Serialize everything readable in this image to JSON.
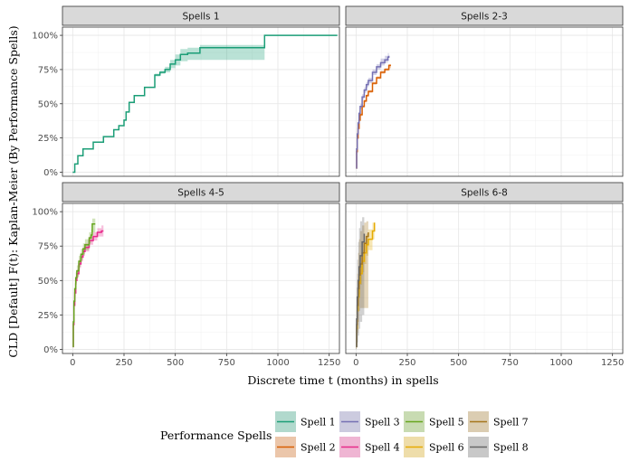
{
  "chart_data": {
    "type": "line",
    "ylabel": "CLD [Default] F(t): Kaplan-Meier (By Performance Spells)",
    "xlabel": "Discrete time t (months) in spells",
    "x_ticks": [
      0,
      250,
      500,
      750,
      1000,
      1250
    ],
    "y_ticks": [
      "0%",
      "25%",
      "50%",
      "75%",
      "100%"
    ],
    "xlim": [
      -50,
      1300
    ],
    "ylim": [
      -0.03,
      1.06
    ],
    "grid": true,
    "legend": {
      "title": "Performance Spells",
      "position": "bottom",
      "items": [
        {
          "name": "Spell 1",
          "color": "#1B9E77"
        },
        {
          "name": "Spell 2",
          "color": "#D95F02"
        },
        {
          "name": "Spell 3",
          "color": "#7570B3"
        },
        {
          "name": "Spell 4",
          "color": "#E7298A"
        },
        {
          "name": "Spell 5",
          "color": "#66A61E"
        },
        {
          "name": "Spell 6",
          "color": "#E6AB02"
        },
        {
          "name": "Spell 7",
          "color": "#A6761D"
        },
        {
          "name": "Spell 8",
          "color": "#666666"
        }
      ]
    },
    "panels": [
      {
        "title": "Spells 1",
        "series": [
          {
            "name": "Spell 1",
            "color": "#1B9E77",
            "x": [
              0,
              10,
              25,
              50,
              100,
              150,
              200,
              225,
              250,
              260,
              275,
              300,
              350,
              400,
              425,
              450,
              475,
              500,
              525,
              560,
              620,
              700,
              800,
              930,
              935,
              1000,
              1150,
              1290
            ],
            "y": [
              0,
              0.06,
              0.12,
              0.17,
              0.22,
              0.26,
              0.31,
              0.34,
              0.38,
              0.44,
              0.51,
              0.56,
              0.62,
              0.71,
              0.73,
              0.75,
              0.79,
              0.82,
              0.86,
              0.87,
              0.91,
              0.91,
              0.91,
              0.91,
              1.0,
              1.0,
              1.0,
              1.0
            ],
            "lower": [
              0,
              0.06,
              0.12,
              0.17,
              0.22,
              0.26,
              0.31,
              0.34,
              0.38,
              0.44,
              0.51,
              0.56,
              0.62,
              0.7,
              0.72,
              0.73,
              0.76,
              0.78,
              0.81,
              0.82,
              0.82,
              0.82,
              0.82,
              0.82,
              1.0,
              1.0,
              1.0,
              1.0
            ],
            "upper": [
              0,
              0.06,
              0.12,
              0.17,
              0.22,
              0.26,
              0.31,
              0.34,
              0.38,
              0.44,
              0.51,
              0.56,
              0.62,
              0.72,
              0.74,
              0.77,
              0.82,
              0.86,
              0.9,
              0.91,
              0.93,
              0.93,
              0.93,
              0.93,
              1.0,
              1.0,
              1.0,
              1.0
            ]
          }
        ]
      },
      {
        "title": "Spells 2-3",
        "series": [
          {
            "name": "Spell 2",
            "color": "#D95F02",
            "x": [
              0,
              3,
              6,
              10,
              15,
              20,
              30,
              40,
              50,
              60,
              80,
              100,
              120,
              140,
              160,
              170
            ],
            "y": [
              0.03,
              0.15,
              0.25,
              0.32,
              0.38,
              0.42,
              0.48,
              0.52,
              0.56,
              0.59,
              0.65,
              0.69,
              0.73,
              0.75,
              0.78,
              0.78
            ],
            "lower": [
              0.03,
              0.14,
              0.24,
              0.31,
              0.37,
              0.41,
              0.47,
              0.51,
              0.55,
              0.58,
              0.64,
              0.68,
              0.72,
              0.74,
              0.76,
              0.76
            ],
            "upper": [
              0.03,
              0.16,
              0.26,
              0.33,
              0.39,
              0.43,
              0.49,
              0.53,
              0.57,
              0.6,
              0.66,
              0.7,
              0.74,
              0.76,
              0.79,
              0.79
            ]
          },
          {
            "name": "Spell 3",
            "color": "#7570B3",
            "x": [
              0,
              3,
              6,
              10,
              15,
              20,
              30,
              40,
              50,
              60,
              80,
              100,
              120,
              140,
              155,
              160
            ],
            "y": [
              0.03,
              0.17,
              0.28,
              0.36,
              0.43,
              0.48,
              0.55,
              0.6,
              0.64,
              0.67,
              0.73,
              0.77,
              0.8,
              0.82,
              0.84,
              0.85
            ],
            "lower": [
              0.03,
              0.15,
              0.26,
              0.34,
              0.41,
              0.46,
              0.53,
              0.58,
              0.62,
              0.65,
              0.71,
              0.75,
              0.78,
              0.8,
              0.81,
              0.82
            ],
            "upper": [
              0.03,
              0.19,
              0.3,
              0.38,
              0.45,
              0.5,
              0.57,
              0.62,
              0.66,
              0.69,
              0.75,
              0.79,
              0.83,
              0.85,
              0.87,
              0.88
            ]
          }
        ]
      },
      {
        "title": "Spells 4-5",
        "series": [
          {
            "name": "Spell 4",
            "color": "#E7298A",
            "x": [
              0,
              3,
              6,
              10,
              15,
              20,
              30,
              40,
              50,
              60,
              80,
              100,
              120,
              140,
              150
            ],
            "y": [
              0.02,
              0.18,
              0.32,
              0.41,
              0.5,
              0.55,
              0.62,
              0.67,
              0.71,
              0.74,
              0.79,
              0.82,
              0.85,
              0.86,
              0.86
            ],
            "lower": [
              0.02,
              0.15,
              0.29,
              0.38,
              0.47,
              0.52,
              0.59,
              0.64,
              0.68,
              0.71,
              0.76,
              0.79,
              0.82,
              0.82,
              0.82
            ],
            "upper": [
              0.02,
              0.21,
              0.35,
              0.44,
              0.53,
              0.58,
              0.65,
              0.7,
              0.74,
              0.77,
              0.82,
              0.85,
              0.88,
              0.9,
              0.9
            ]
          },
          {
            "name": "Spell 5",
            "color": "#66A61E",
            "x": [
              0,
              3,
              6,
              10,
              15,
              20,
              30,
              40,
              50,
              60,
              80,
              90,
              95,
              110
            ],
            "y": [
              0.02,
              0.2,
              0.35,
              0.44,
              0.52,
              0.57,
              0.64,
              0.69,
              0.73,
              0.76,
              0.81,
              0.83,
              0.91,
              0.91
            ],
            "lower": [
              0.02,
              0.16,
              0.31,
              0.4,
              0.48,
              0.53,
              0.6,
              0.65,
              0.69,
              0.72,
              0.77,
              0.79,
              0.85,
              0.85
            ],
            "upper": [
              0.02,
              0.24,
              0.39,
              0.48,
              0.56,
              0.61,
              0.68,
              0.73,
              0.77,
              0.8,
              0.85,
              0.87,
              0.95,
              0.95
            ]
          }
        ]
      },
      {
        "title": "Spells 6-8",
        "series": [
          {
            "name": "Spell 6",
            "color": "#E6AB02",
            "x": [
              0,
              3,
              6,
              10,
              15,
              20,
              30,
              40,
              50,
              60,
              80,
              90
            ],
            "y": [
              0.02,
              0.15,
              0.28,
              0.38,
              0.48,
              0.55,
              0.64,
              0.7,
              0.76,
              0.8,
              0.86,
              0.92
            ],
            "lower": [
              0.02,
              0.1,
              0.22,
              0.31,
              0.4,
              0.47,
              0.56,
              0.62,
              0.68,
              0.72,
              0.8,
              0.86
            ],
            "upper": [
              0.02,
              0.2,
              0.34,
              0.45,
              0.56,
              0.63,
              0.72,
              0.78,
              0.84,
              0.87,
              0.92,
              0.95
            ]
          },
          {
            "name": "Spell 7",
            "color": "#A6761D",
            "x": [
              0,
              3,
              6,
              10,
              15,
              20,
              30,
              40,
              50,
              60
            ],
            "y": [
              0.02,
              0.18,
              0.32,
              0.44,
              0.54,
              0.62,
              0.7,
              0.77,
              0.82,
              0.85
            ],
            "lower": [
              0.0,
              0.05,
              0.12,
              0.2,
              0.28,
              0.3,
              0.3,
              0.3,
              0.3,
              0.3
            ],
            "upper": [
              0.05,
              0.35,
              0.55,
              0.7,
              0.8,
              0.86,
              0.9,
              0.92,
              0.93,
              0.93
            ]
          },
          {
            "name": "Spell 8",
            "color": "#666666",
            "x": [
              0,
              3,
              6,
              10,
              15,
              20,
              30,
              40
            ],
            "y": [
              0.02,
              0.22,
              0.38,
              0.5,
              0.6,
              0.68,
              0.78,
              0.84
            ],
            "lower": [
              0.0,
              0.02,
              0.05,
              0.1,
              0.15,
              0.2,
              0.25,
              0.28
            ],
            "upper": [
              0.08,
              0.45,
              0.65,
              0.78,
              0.88,
              0.93,
              0.96,
              0.96
            ]
          }
        ]
      }
    ]
  }
}
